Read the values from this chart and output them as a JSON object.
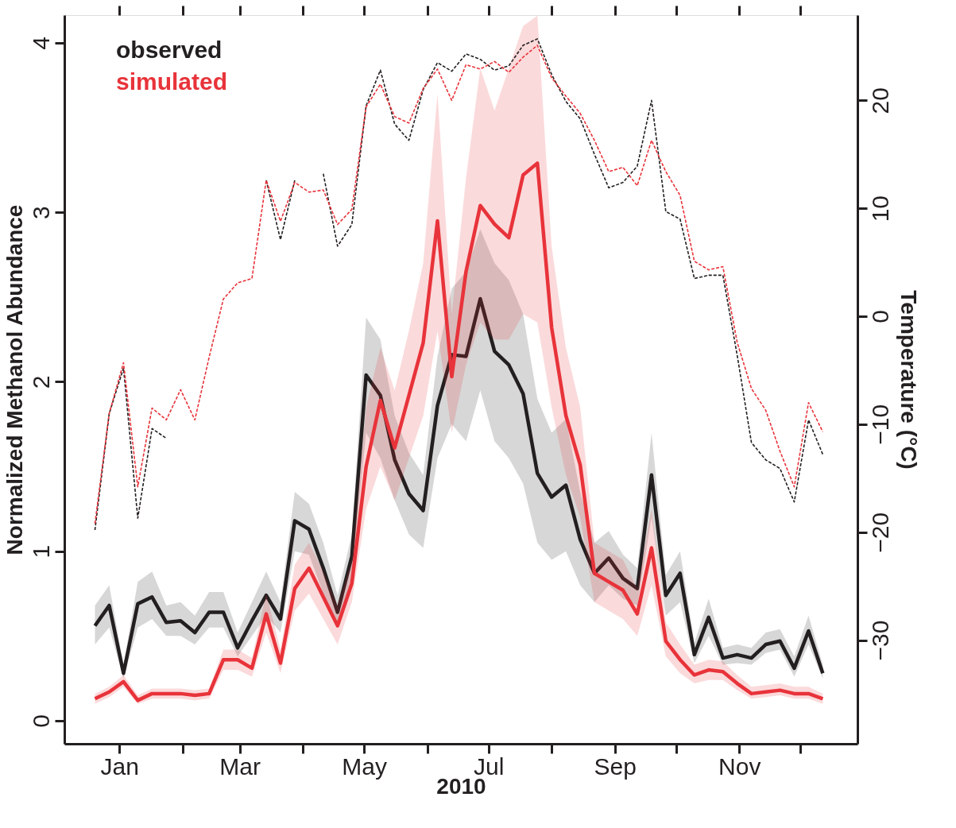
{
  "chart_data": {
    "type": "line",
    "xlabel": "2010",
    "ylabel": "Normalized Methanol Abundance",
    "y2label": "Temperature (°C)",
    "x": [
      "2009-12-20",
      "2009-12-27",
      "2010-01-03",
      "2010-01-10",
      "2010-01-17",
      "2010-01-24",
      "2010-01-31",
      "2010-02-07",
      "2010-02-14",
      "2010-02-21",
      "2010-02-28",
      "2010-03-07",
      "2010-03-14",
      "2010-03-21",
      "2010-03-28",
      "2010-04-04",
      "2010-04-11",
      "2010-04-18",
      "2010-04-25",
      "2010-05-02",
      "2010-05-09",
      "2010-05-16",
      "2010-05-23",
      "2010-05-30",
      "2010-06-06",
      "2010-06-13",
      "2010-06-20",
      "2010-06-27",
      "2010-07-04",
      "2010-07-11",
      "2010-07-18",
      "2010-07-25",
      "2010-08-01",
      "2010-08-08",
      "2010-08-15",
      "2010-08-22",
      "2010-08-29",
      "2010-09-05",
      "2010-09-12",
      "2010-09-19",
      "2010-09-26",
      "2010-10-03",
      "2010-10-10",
      "2010-10-17",
      "2010-10-24",
      "2010-10-31",
      "2010-11-07",
      "2010-11-14",
      "2010-11-21",
      "2010-11-28",
      "2010-12-05",
      "2010-12-12"
    ],
    "xlim": [
      "2009-12-05",
      "2010-12-29"
    ],
    "xticks": [
      {
        "value": "2010-01-01",
        "label": "Jan"
      },
      {
        "value": "2010-02-01",
        "label": null
      },
      {
        "value": "2010-03-01",
        "label": "Mar"
      },
      {
        "value": "2010-04-01",
        "label": null
      },
      {
        "value": "2010-05-01",
        "label": "May"
      },
      {
        "value": "2010-06-01",
        "label": null
      },
      {
        "value": "2010-07-01",
        "label": "Jul"
      },
      {
        "value": "2010-08-01",
        "label": null
      },
      {
        "value": "2010-09-01",
        "label": "Sep"
      },
      {
        "value": "2010-10-01",
        "label": null
      },
      {
        "value": "2010-11-01",
        "label": "Nov"
      },
      {
        "value": "2010-12-01",
        "label": null
      }
    ],
    "ylim": [
      -0.136,
      4.164
    ],
    "yticks": [
      0,
      1,
      2,
      3,
      4
    ],
    "y2lim": [
      -39.6,
      27.9
    ],
    "y2ticks": [
      -30,
      -20,
      -10,
      0,
      10,
      20
    ],
    "grid": false,
    "legend": "top left",
    "line_style": "solid",
    "marker": "none",
    "series": [
      {
        "name": "observed",
        "color": "#231f20",
        "values": [
          0.56,
          0.68,
          0.28,
          0.69,
          0.73,
          0.58,
          0.59,
          0.52,
          0.64,
          0.64,
          0.43,
          0.59,
          0.74,
          0.6,
          1.18,
          1.13,
          0.9,
          0.64,
          0.97,
          2.04,
          1.92,
          1.54,
          1.34,
          1.24,
          1.86,
          2.16,
          2.15,
          2.49,
          2.18,
          2.1,
          1.93,
          1.46,
          1.32,
          1.39,
          1.07,
          0.87,
          0.96,
          0.84,
          0.78,
          1.45,
          0.74,
          0.87,
          0.39,
          0.61,
          0.37,
          0.39,
          0.37,
          0.45,
          0.47,
          0.31,
          0.53,
          0.28
        ],
        "lower": [
          0.45,
          0.55,
          0.25,
          0.55,
          0.6,
          0.5,
          0.5,
          0.45,
          0.55,
          0.55,
          0.38,
          0.5,
          0.62,
          0.52,
          1.0,
          0.98,
          0.75,
          0.55,
          0.85,
          1.7,
          1.55,
          1.3,
          1.1,
          1.02,
          1.55,
          1.75,
          1.65,
          1.95,
          1.65,
          1.55,
          1.4,
          1.05,
          0.95,
          1.0,
          0.8,
          0.7,
          0.8,
          0.72,
          0.68,
          1.2,
          0.62,
          0.7,
          0.34,
          0.5,
          0.33,
          0.34,
          0.33,
          0.4,
          0.42,
          0.26,
          0.45,
          0.25
        ],
        "upper": [
          0.68,
          0.8,
          0.33,
          0.82,
          0.88,
          0.68,
          0.7,
          0.62,
          0.76,
          0.76,
          0.52,
          0.7,
          0.88,
          0.7,
          1.35,
          1.28,
          1.05,
          0.74,
          1.1,
          2.38,
          2.25,
          1.8,
          1.58,
          1.45,
          2.15,
          2.55,
          2.65,
          2.9,
          2.7,
          2.6,
          2.4,
          1.9,
          1.7,
          1.78,
          1.35,
          1.05,
          1.12,
          0.98,
          0.9,
          1.7,
          0.86,
          1.0,
          0.46,
          0.72,
          0.43,
          0.45,
          0.43,
          0.52,
          0.54,
          0.38,
          0.62,
          0.33
        ]
      },
      {
        "name": "simulated",
        "color": "#e8333a",
        "values": [
          0.13,
          0.17,
          0.23,
          0.12,
          0.16,
          0.16,
          0.16,
          0.15,
          0.16,
          0.36,
          0.36,
          0.31,
          0.63,
          0.34,
          0.78,
          0.9,
          0.73,
          0.56,
          0.81,
          1.5,
          1.89,
          1.61,
          1.92,
          2.23,
          2.95,
          2.03,
          2.65,
          3.04,
          2.93,
          2.85,
          3.22,
          3.29,
          2.32,
          1.8,
          1.51,
          0.87,
          0.82,
          0.77,
          0.63,
          1.02,
          0.47,
          0.36,
          0.27,
          0.3,
          0.29,
          0.22,
          0.16,
          0.17,
          0.18,
          0.16,
          0.16,
          0.13
        ],
        "lower": [
          0.1,
          0.14,
          0.2,
          0.1,
          0.13,
          0.13,
          0.13,
          0.12,
          0.13,
          0.3,
          0.3,
          0.26,
          0.52,
          0.28,
          0.65,
          0.75,
          0.6,
          0.45,
          0.7,
          1.25,
          1.5,
          1.3,
          1.55,
          1.8,
          2.3,
          1.7,
          2.1,
          2.35,
          2.25,
          2.25,
          2.4,
          2.35,
          1.85,
          1.45,
          1.2,
          0.7,
          0.65,
          0.6,
          0.5,
          0.8,
          0.38,
          0.28,
          0.22,
          0.24,
          0.24,
          0.18,
          0.13,
          0.14,
          0.15,
          0.13,
          0.13,
          0.1
        ],
        "upper": [
          0.16,
          0.2,
          0.27,
          0.15,
          0.19,
          0.19,
          0.19,
          0.18,
          0.19,
          0.42,
          0.42,
          0.37,
          0.75,
          0.42,
          0.92,
          1.05,
          0.88,
          0.68,
          0.95,
          1.85,
          2.2,
          1.95,
          2.3,
          2.7,
          3.7,
          2.4,
          3.2,
          3.85,
          3.6,
          3.85,
          4.1,
          4.16,
          2.8,
          2.2,
          1.85,
          1.05,
          1.0,
          0.95,
          0.78,
          1.25,
          0.58,
          0.45,
          0.33,
          0.36,
          0.35,
          0.27,
          0.2,
          0.21,
          0.22,
          0.2,
          0.2,
          0.16
        ]
      },
      {
        "color": "#231f20",
        "axis": "y2",
        "line_style": "dashed",
        "values": [
          -19.8,
          -9.0,
          -4.8,
          -18.7,
          -10.4,
          -11.3,
          null,
          null,
          null,
          null,
          null,
          null,
          12.6,
          7.1,
          12.6,
          null,
          13.2,
          6.5,
          8.5,
          19.5,
          22.8,
          17.8,
          16.3,
          21.0,
          23.5,
          22.7,
          24.3,
          23.8,
          22.8,
          23.2,
          25.1,
          25.7,
          22.4,
          19.9,
          18.3,
          15.0,
          11.9,
          12.4,
          13.9,
          20.0,
          9.7,
          9.0,
          3.5,
          3.8,
          3.8,
          -3.6,
          -11.7,
          -13.3,
          -14.1,
          -17.2,
          -9.6,
          -12.8
        ]
      },
      {
        "color": "#e8333a",
        "axis": "y2",
        "line_style": "dashed",
        "values": [
          -19.2,
          -9.0,
          -4.3,
          -15.8,
          -8.5,
          -9.6,
          -6.8,
          -9.6,
          -3.8,
          1.6,
          3.1,
          3.5,
          12.6,
          8.8,
          12.4,
          11.5,
          11.7,
          8.5,
          9.9,
          19.4,
          21.5,
          18.5,
          17.9,
          21.1,
          22.9,
          20.0,
          23.3,
          22.9,
          23.6,
          22.6,
          24.0,
          25.1,
          22.1,
          20.4,
          18.8,
          16.3,
          13.4,
          13.8,
          12.1,
          16.3,
          13.4,
          11.2,
          5.1,
          4.3,
          4.6,
          -2.4,
          -6.7,
          -8.7,
          -12.5,
          -15.8,
          -8.0,
          -10.7
        ]
      }
    ]
  }
}
